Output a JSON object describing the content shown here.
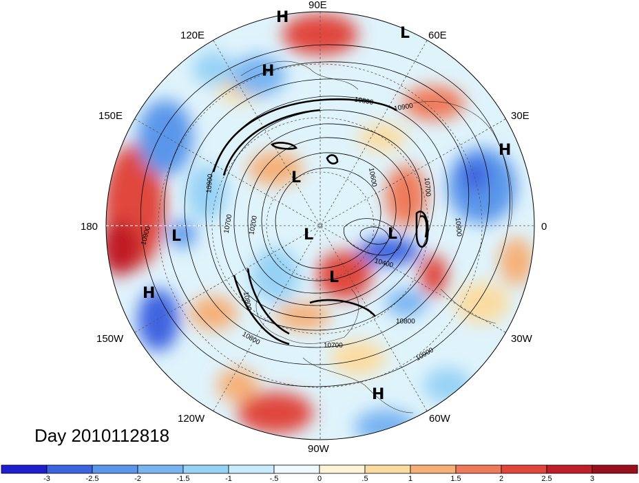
{
  "title": "Day 2010112818",
  "longitude_labels": [
    "90E",
    "60E",
    "30E",
    "0",
    "30W",
    "60W",
    "90W",
    "120W",
    "150W",
    "180",
    "150E",
    "120E"
  ],
  "pressure_systems": [
    {
      "type": "H"
    },
    {
      "type": "L"
    },
    {
      "type": "H"
    },
    {
      "type": "H"
    },
    {
      "type": "L"
    },
    {
      "type": "L"
    },
    {
      "type": "L"
    },
    {
      "type": "L"
    },
    {
      "type": "L"
    },
    {
      "type": "H"
    },
    {
      "type": "H"
    }
  ],
  "contour_labels": [
    "10900",
    "10900",
    "10800",
    "10700",
    "10200",
    "10900",
    "10600",
    "10700",
    "10900",
    "10400",
    "10800",
    "10900",
    "10800",
    "10700",
    "10800",
    "10900"
  ],
  "colorbar": {
    "ticks": [
      "-3",
      "-2.5",
      "-2",
      "-1.5",
      "-1",
      "-.5",
      "0",
      ".5",
      "1",
      "1.5",
      "2",
      "2.5",
      "3"
    ],
    "colors": [
      "#1e1ecf",
      "#3c64e0",
      "#5a96ea",
      "#78b4f0",
      "#96d2f5",
      "#c8ecfb",
      "#eef9fd",
      "#fdf5d6",
      "#fbdca0",
      "#f5b078",
      "#ef7a5a",
      "#e0463c",
      "#c01e28",
      "#9a0f1c"
    ]
  }
}
